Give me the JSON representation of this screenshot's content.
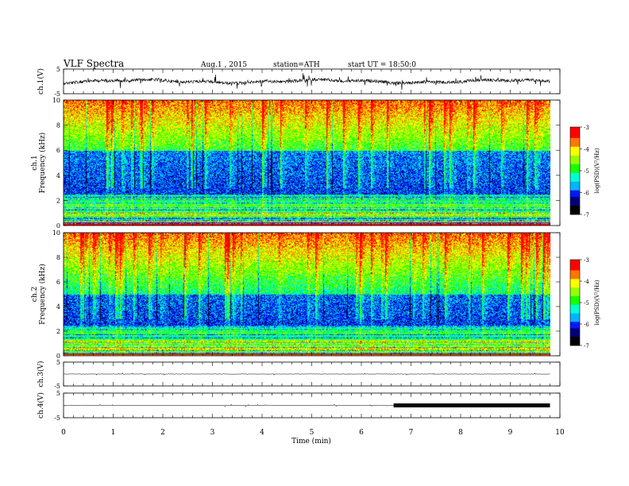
{
  "header": {
    "title": "VLF Spectra",
    "date": "Aug.1 , 2015",
    "station": "station=ATH",
    "start": "start UT = 18:50:0"
  },
  "chart_data": {
    "type": "heatmap",
    "x_axis": {
      "label": "Time (min)",
      "range": [
        0,
        10
      ],
      "ticks": [
        "0",
        "1",
        "2",
        "3",
        "4",
        "5",
        "6",
        "7",
        "8",
        "9",
        "10"
      ]
    },
    "panels": [
      {
        "id": "ch1-waveform",
        "type": "line",
        "ylabel": "ch.1(V)",
        "ylim": [
          -5,
          5
        ],
        "yticks": [
          "5",
          "-5"
        ],
        "trace_mean": 0
      },
      {
        "id": "ch1-spectrogram",
        "type": "heatmap",
        "ylabel_line1": "ch.1",
        "ylabel_line2": "Frequency (kHz)",
        "ylim": [
          0,
          10
        ],
        "yticks": [
          "0",
          "2",
          "4",
          "6",
          "8",
          "10"
        ],
        "colorbar": {
          "label": "log(PSD)(V²/Hz)",
          "range": [
            -7,
            -3
          ],
          "ticks": [
            "-3",
            "-4",
            "-5",
            "-6",
            "-7"
          ]
        }
      },
      {
        "id": "ch2-spectrogram",
        "type": "heatmap",
        "ylabel_line1": "ch.2",
        "ylabel_line2": "Frequency (kHz)",
        "ylim": [
          0,
          10
        ],
        "yticks": [
          "0",
          "2",
          "4",
          "6",
          "8",
          "10"
        ],
        "colorbar": {
          "label": "log(PSD)(V²/Hz)",
          "range": [
            -7,
            -3
          ],
          "ticks": [
            "-3",
            "-4",
            "-5",
            "-6",
            "-7"
          ]
        }
      },
      {
        "id": "ch3-waveform",
        "type": "line",
        "ylabel": "ch.3(V)",
        "ylim": [
          -5,
          5
        ],
        "yticks": [
          "5",
          "-5"
        ],
        "trace_mean": 0
      },
      {
        "id": "ch4-waveform",
        "type": "line",
        "ylabel": "ch.4(V)",
        "ylim": [
          -5,
          5
        ],
        "yticks": [
          "5",
          "-5"
        ],
        "trace_mean": 0,
        "thick_segment_start_min": 6.65,
        "data_end_min": 9.8
      }
    ],
    "data_end_min": 9.8,
    "colormap": [
      "#000000",
      "#00007a",
      "#0018ff",
      "#00b4ff",
      "#00ffd2",
      "#14ff00",
      "#96ff00",
      "#ffff00",
      "#ff7800",
      "#ff0000",
      "#ffffff"
    ]
  }
}
